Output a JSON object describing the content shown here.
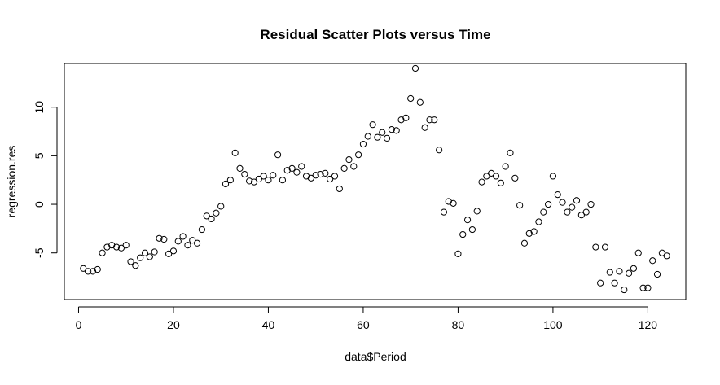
{
  "chart_data": {
    "type": "scatter",
    "title": "Residual Scatter Plots versus Time",
    "xlabel": "data$Period",
    "ylabel": "regression.res",
    "xlim": [
      -3,
      128
    ],
    "ylim": [
      -9.8,
      14.5
    ],
    "xticks": [
      0,
      20,
      40,
      60,
      80,
      100,
      120
    ],
    "yticks": [
      -5,
      0,
      5,
      10
    ],
    "xtick_labels": [
      "0",
      "20",
      "40",
      "60",
      "80",
      "100",
      "120"
    ],
    "ytick_labels": [
      "-5",
      "0",
      "5",
      "10"
    ],
    "grid": false,
    "legend": "none",
    "marker": "open-circle",
    "series": [
      {
        "x": [
          1,
          2,
          3,
          4,
          5,
          6,
          7,
          8,
          9,
          10,
          11,
          12,
          13,
          14,
          15,
          16,
          17,
          18,
          19,
          20,
          21,
          22,
          23,
          24,
          25,
          26,
          27,
          28,
          29,
          30,
          31,
          32,
          33,
          34,
          35,
          36,
          37,
          38,
          39,
          40,
          41,
          42,
          43,
          44,
          45,
          46,
          47,
          48,
          49,
          50,
          51,
          52,
          53,
          54,
          55,
          56,
          57,
          58,
          59,
          60,
          61,
          62,
          63,
          64,
          65,
          66,
          67,
          68,
          69,
          70,
          71,
          72,
          73,
          74,
          75,
          76,
          77,
          78,
          79,
          80,
          81,
          82,
          83,
          84,
          85,
          86,
          87,
          88,
          89,
          90,
          91,
          92,
          93,
          94,
          95,
          96,
          97,
          98,
          99,
          100,
          101,
          102,
          103,
          104,
          105,
          106,
          107,
          108,
          109,
          110,
          111,
          112,
          113,
          114,
          115,
          116,
          117,
          118,
          119,
          120,
          121,
          122,
          123,
          124
        ],
        "y": [
          -6.6,
          -6.9,
          -6.9,
          -6.7,
          -5.0,
          -4.4,
          -4.2,
          -4.4,
          -4.5,
          -4.2,
          -5.9,
          -6.3,
          -5.5,
          -5.0,
          -5.4,
          -4.9,
          -3.5,
          -3.6,
          -5.1,
          -4.8,
          -3.8,
          -3.3,
          -4.2,
          -3.7,
          -4.0,
          -2.6,
          -1.2,
          -1.5,
          -0.9,
          -0.2,
          2.1,
          2.5,
          5.3,
          3.7,
          3.1,
          2.4,
          2.3,
          2.6,
          2.9,
          2.5,
          3.0,
          5.1,
          2.5,
          3.5,
          3.7,
          3.3,
          3.9,
          2.9,
          2.7,
          3.0,
          3.1,
          3.2,
          2.6,
          2.9,
          1.6,
          3.7,
          4.6,
          3.9,
          5.1,
          6.2,
          7.0,
          8.2,
          6.9,
          7.4,
          6.8,
          7.7,
          7.6,
          8.7,
          8.9,
          10.9,
          14.0,
          10.5,
          7.9,
          8.7,
          8.7,
          5.6,
          -0.8,
          0.3,
          0.1,
          -5.1,
          -3.1,
          -1.6,
          -2.6,
          -0.7,
          2.3,
          2.9,
          3.2,
          2.9,
          2.2,
          3.9,
          5.3,
          2.7,
          -0.1,
          -4.0,
          -3.0,
          -2.8,
          -1.8,
          -0.8,
          0.0,
          2.9,
          1.0,
          0.2,
          -0.8,
          -0.3,
          0.4,
          -1.1,
          -0.8,
          0.0,
          -4.4,
          -8.1,
          -4.4,
          -7.0,
          -8.1,
          -6.9,
          -8.8,
          -7.1,
          -6.6,
          -5.0,
          -8.6,
          -8.6,
          -5.8,
          -7.2,
          -5.0,
          -5.3
        ]
      }
    ]
  }
}
